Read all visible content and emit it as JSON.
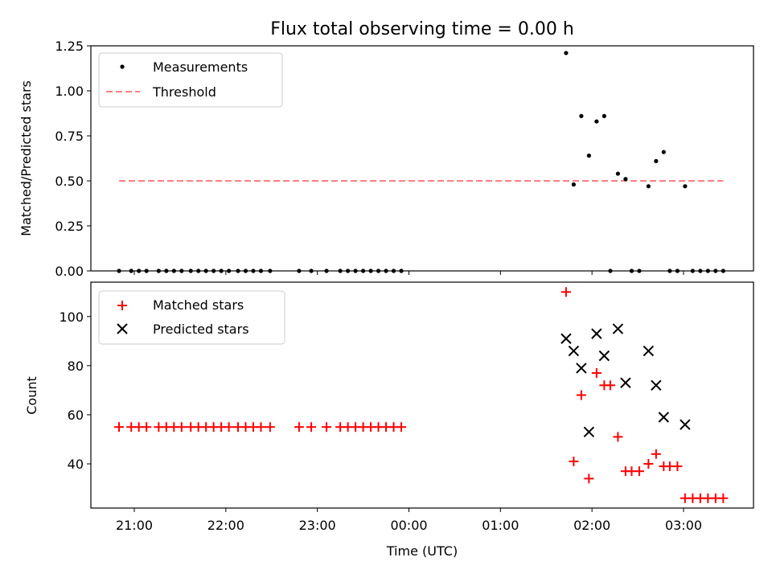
{
  "chart_data": [
    {
      "type": "scatter",
      "title": "Flux total observing time = 0.00 h",
      "xlabel": "",
      "ylabel": "Matched/Predicted stars",
      "ylim": [
        0,
        1.25
      ],
      "yticks": [
        "0.00",
        "0.25",
        "0.50",
        "0.75",
        "1.00",
        "1.25"
      ],
      "legend": {
        "position": "top-left"
      },
      "series": [
        {
          "name": "Measurements",
          "marker": "dot",
          "color": "#000000",
          "x": [
            "20:50",
            "20:58",
            "21:03",
            "21:08",
            "21:16",
            "21:21",
            "21:26",
            "21:31",
            "21:37",
            "21:42",
            "21:47",
            "21:52",
            "21:57",
            "22:02",
            "22:08",
            "22:13",
            "22:18",
            "22:23",
            "22:29",
            "22:48",
            "22:56",
            "23:06",
            "23:15",
            "23:20",
            "23:25",
            "23:30",
            "23:35",
            "23:40",
            "23:45",
            "23:50",
            "23:55",
            "01:43",
            "01:48",
            "01:53",
            "01:58",
            "02:03",
            "02:08",
            "02:12",
            "02:17",
            "02:22",
            "02:26",
            "02:31",
            "02:37",
            "02:42",
            "02:47",
            "02:51",
            "02:56",
            "03:01",
            "03:06",
            "03:11",
            "03:16",
            "03:21",
            "03:26"
          ],
          "y": [
            0,
            0,
            0,
            0,
            0,
            0,
            0,
            0,
            0,
            0,
            0,
            0,
            0,
            0,
            0,
            0,
            0,
            0,
            0,
            0,
            0,
            0,
            0,
            0,
            0,
            0,
            0,
            0,
            0,
            0,
            0,
            1.21,
            0.48,
            0.86,
            0.64,
            0.83,
            0.86,
            0,
            0.54,
            0.51,
            0,
            0,
            0.47,
            0.61,
            0.66,
            0,
            0,
            0.47,
            0,
            0,
            0,
            0,
            0
          ]
        },
        {
          "name": "Threshold",
          "line_style": "dashed",
          "color": "#ff7f7f",
          "x": [
            "20:50",
            "03:26"
          ],
          "y": [
            0.5,
            0.5
          ]
        }
      ]
    },
    {
      "type": "scatter",
      "title": "",
      "xlabel": "Time (UTC)",
      "ylabel": "Count",
      "ylim": [
        22,
        114
      ],
      "yticks": [
        "40",
        "60",
        "80",
        "100"
      ],
      "xticks": [
        "21:00",
        "22:00",
        "23:00",
        "00:00",
        "01:00",
        "02:00",
        "03:00"
      ],
      "legend": {
        "position": "top-left"
      },
      "series": [
        {
          "name": "Matched stars",
          "marker": "plus",
          "color": "#ff0000",
          "x": [
            "20:50",
            "20:58",
            "21:03",
            "21:08",
            "21:16",
            "21:21",
            "21:26",
            "21:31",
            "21:37",
            "21:42",
            "21:47",
            "21:52",
            "21:57",
            "22:02",
            "22:08",
            "22:13",
            "22:18",
            "22:23",
            "22:29",
            "22:48",
            "22:56",
            "23:06",
            "23:15",
            "23:20",
            "23:25",
            "23:30",
            "23:35",
            "23:40",
            "23:45",
            "23:50",
            "23:55",
            "01:43",
            "01:48",
            "01:53",
            "01:58",
            "02:03",
            "02:08",
            "02:12",
            "02:17",
            "02:22",
            "02:26",
            "02:31",
            "02:37",
            "02:42",
            "02:47",
            "02:51",
            "02:56",
            "03:01",
            "03:06",
            "03:11",
            "03:16",
            "03:21",
            "03:26"
          ],
          "y": [
            55,
            55,
            55,
            55,
            55,
            55,
            55,
            55,
            55,
            55,
            55,
            55,
            55,
            55,
            55,
            55,
            55,
            55,
            55,
            55,
            55,
            55,
            55,
            55,
            55,
            55,
            55,
            55,
            55,
            55,
            55,
            110,
            41,
            68,
            34,
            77,
            72,
            72,
            51,
            37,
            37,
            37,
            40,
            44,
            39,
            39,
            39,
            26,
            26,
            26,
            26,
            26,
            26
          ]
        },
        {
          "name": "Predicted stars",
          "marker": "x",
          "color": "#000000",
          "x": [
            "01:43",
            "01:48",
            "01:53",
            "01:58",
            "02:03",
            "02:08",
            "02:17",
            "02:22",
            "02:37",
            "02:42",
            "02:47",
            "03:01"
          ],
          "y": [
            91,
            86,
            79,
            53,
            93,
            84,
            95,
            73,
            86,
            72,
            59,
            56
          ]
        }
      ]
    }
  ]
}
